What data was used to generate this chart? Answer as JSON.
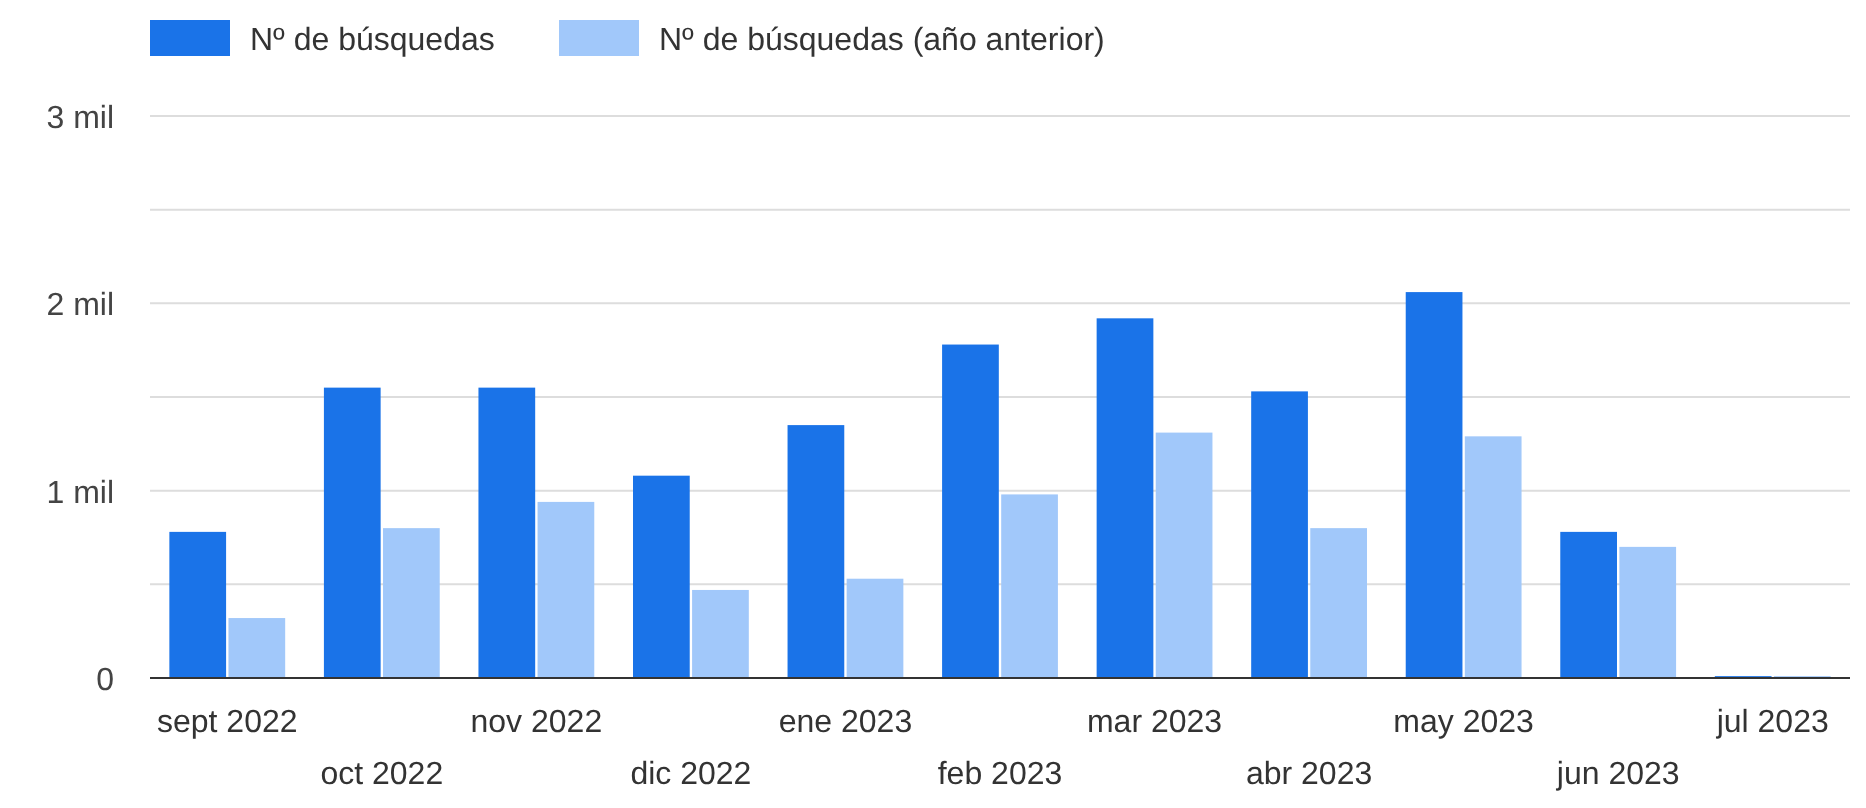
{
  "chart_data": {
    "type": "bar",
    "categories": [
      "sept 2022",
      "oct 2022",
      "nov 2022",
      "dic 2022",
      "ene 2023",
      "feb 2023",
      "mar 2023",
      "abr 2023",
      "may 2023",
      "jun 2023",
      "jul 2023"
    ],
    "series": [
      {
        "name": "Nº de búsquedas",
        "color": "#1a73e8",
        "values": [
          0.78,
          1.55,
          1.55,
          1.08,
          1.35,
          1.78,
          1.92,
          1.53,
          2.06,
          0.78,
          0.01
        ]
      },
      {
        "name": "Nº de búsquedas (año anterior)",
        "color": "#a1c8fa",
        "values": [
          0.32,
          0.8,
          0.94,
          0.47,
          0.53,
          0.98,
          1.31,
          0.8,
          1.29,
          0.7,
          0.01
        ]
      }
    ],
    "ylim": [
      0,
      3
    ],
    "yticks": [
      {
        "value": 0,
        "label": "0"
      },
      {
        "value": 0.5,
        "label": null
      },
      {
        "value": 1,
        "label": "1 mil"
      },
      {
        "value": 1.5,
        "label": null
      },
      {
        "value": 2,
        "label": "2 mil"
      },
      {
        "value": 2.5,
        "label": null
      },
      {
        "value": 3,
        "label": "3 mil"
      }
    ],
    "grid": true,
    "legend": "top left"
  }
}
